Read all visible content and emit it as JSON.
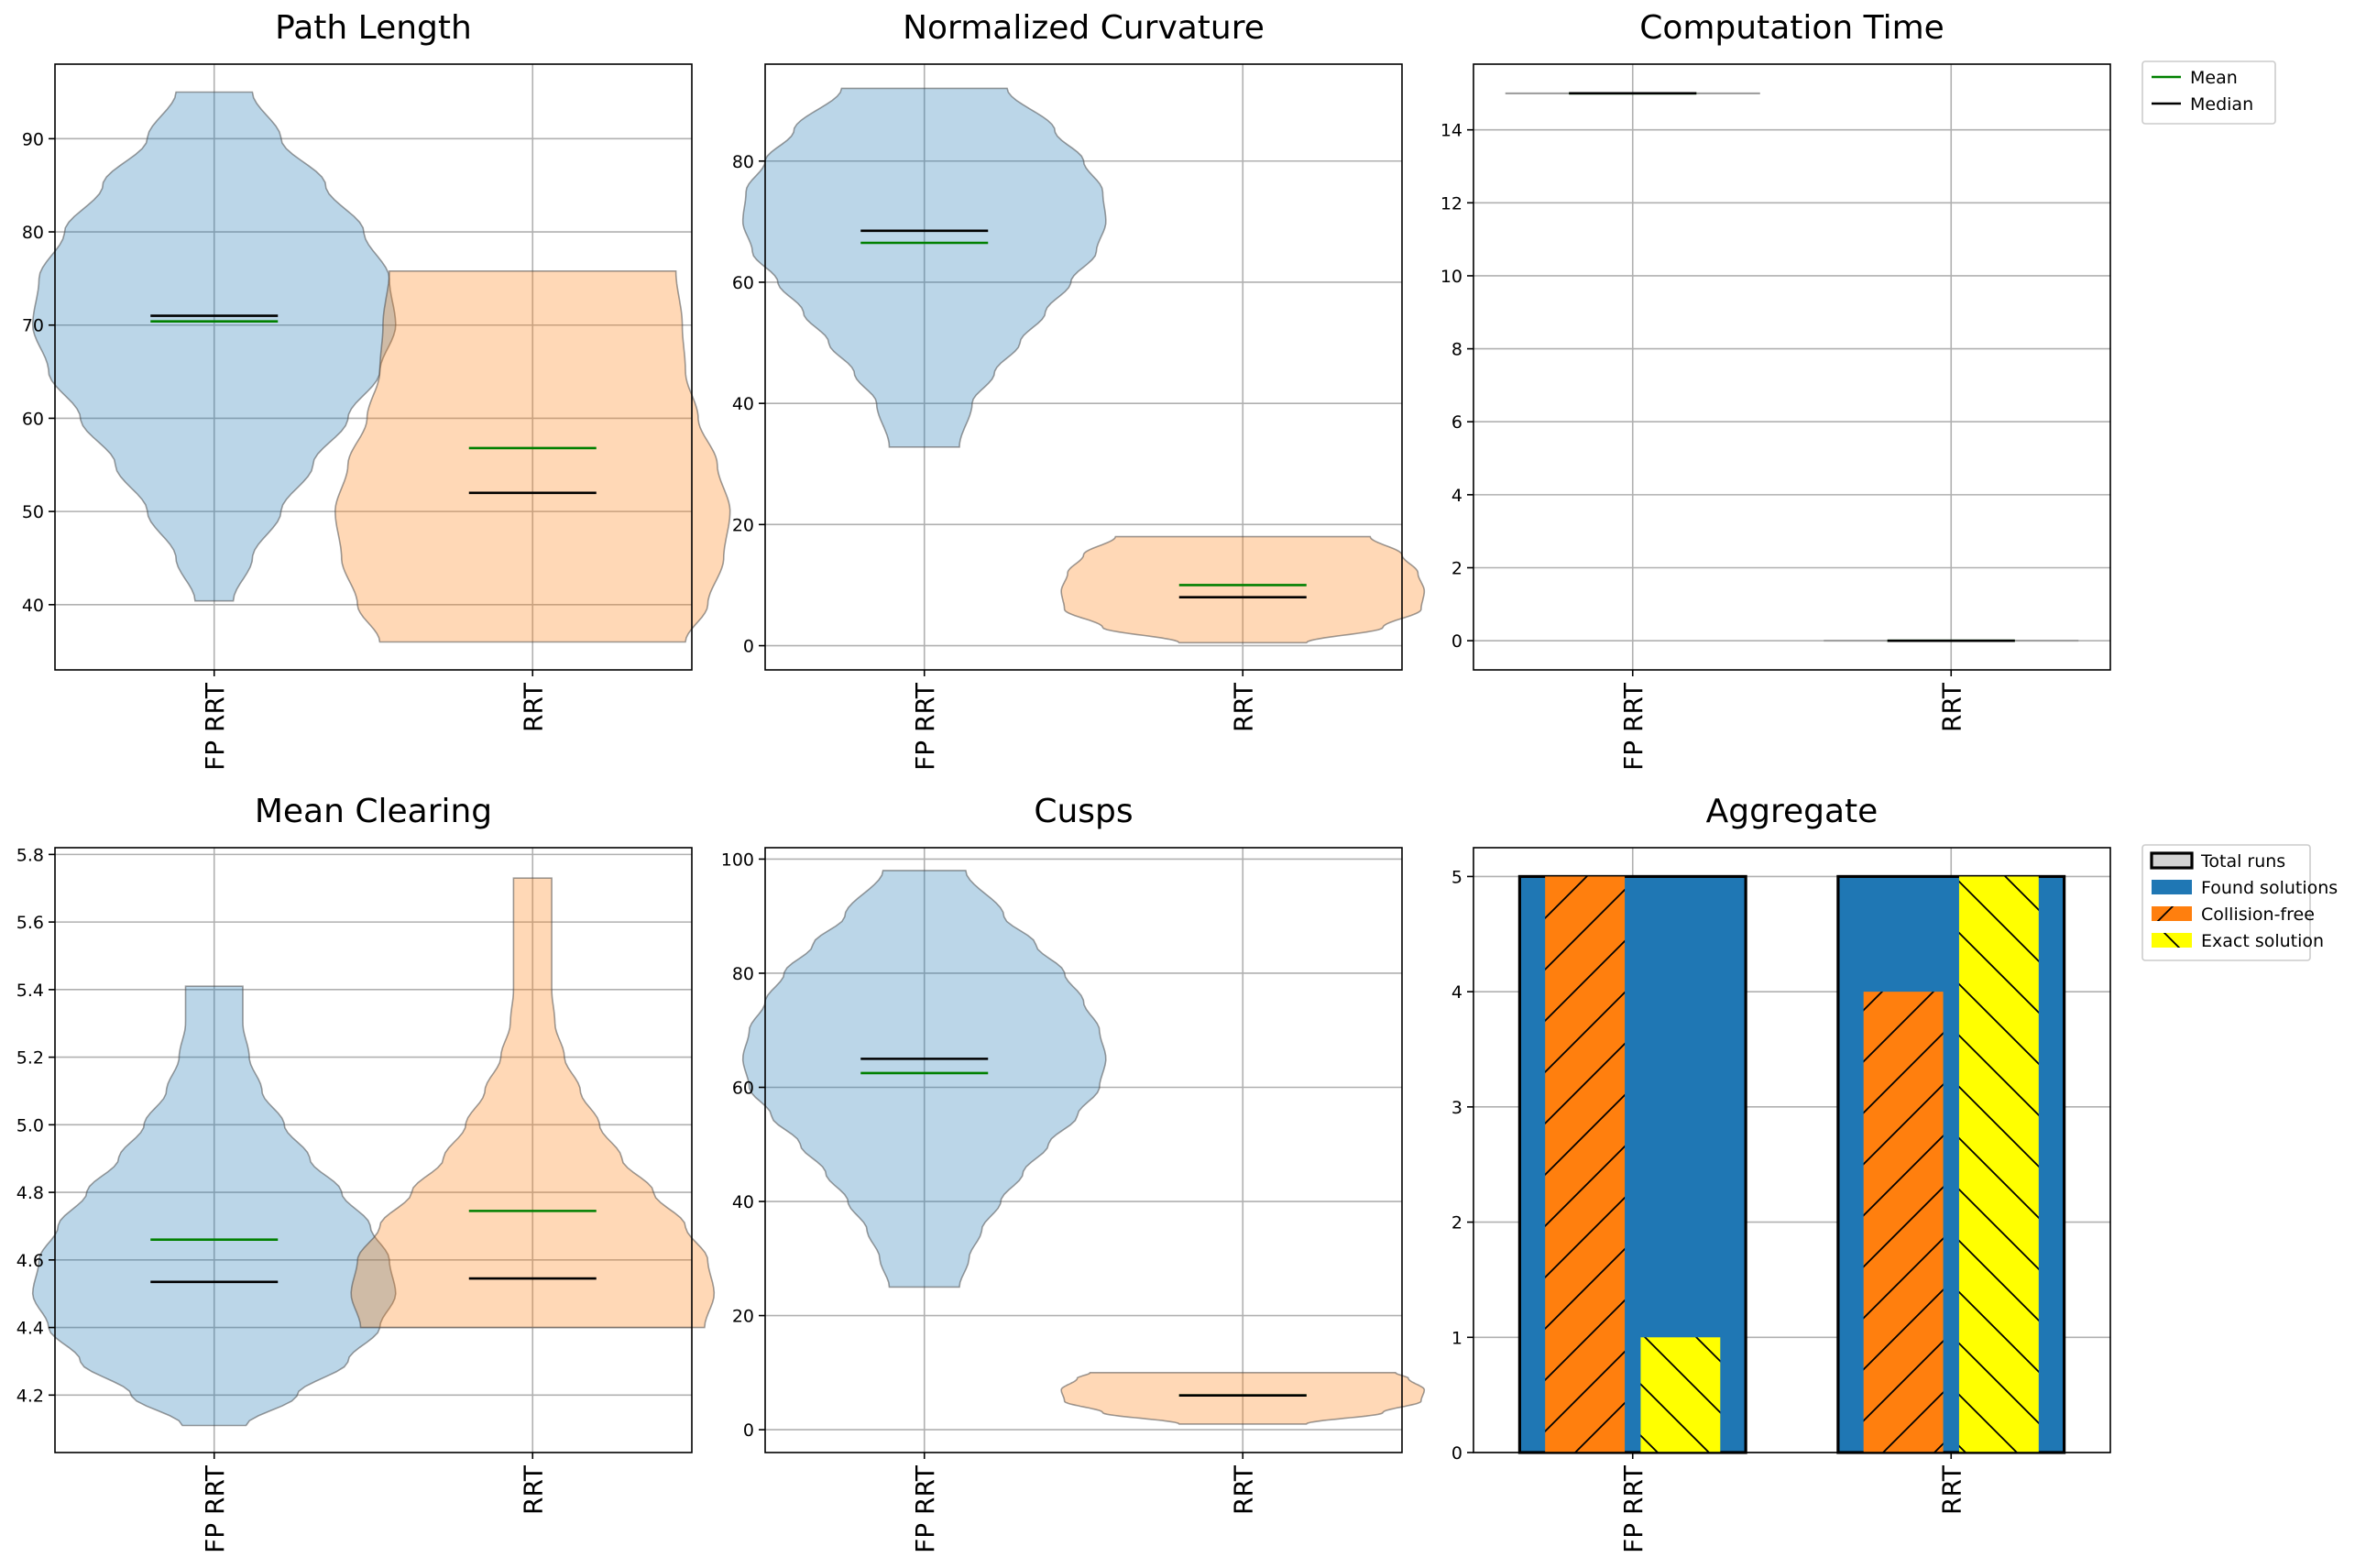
{
  "chart_data": [
    {
      "type": "violin",
      "title": "Path Length",
      "categories": [
        "FP RRT",
        "RRT"
      ],
      "ylim": [
        33,
        98
      ],
      "yticks": [
        40,
        50,
        60,
        70,
        80,
        90
      ],
      "grid": true,
      "series": [
        {
          "category": "FP RRT",
          "color": "#1f77b4",
          "min": 40.4,
          "max": 95.0,
          "mean": 70.4,
          "median": 71.0,
          "density": [
            [
              40.4,
              6
            ],
            [
              45,
              12
            ],
            [
              50,
              21
            ],
            [
              55,
              31
            ],
            [
              60,
              42
            ],
            [
              65,
              52
            ],
            [
              70,
              57
            ],
            [
              75,
              55
            ],
            [
              80,
              47
            ],
            [
              85,
              35
            ],
            [
              90,
              21
            ],
            [
              95,
              12
            ]
          ]
        },
        {
          "category": "RRT",
          "color": "#ff7f0e",
          "min": 36.0,
          "max": 75.8,
          "mean": 56.8,
          "median": 52.0,
          "density": [
            [
              36,
              48
            ],
            [
              40,
              55
            ],
            [
              45,
              60
            ],
            [
              50,
              62
            ],
            [
              55,
              58
            ],
            [
              60,
              52
            ],
            [
              65,
              48
            ],
            [
              70,
              47
            ],
            [
              75.8,
              45
            ]
          ]
        }
      ]
    },
    {
      "type": "violin",
      "title": "Normalized Curvature",
      "categories": [
        "FP RRT",
        "RRT"
      ],
      "ylim": [
        -4,
        96
      ],
      "yticks": [
        0,
        20,
        40,
        60,
        80
      ],
      "grid": true,
      "series": [
        {
          "category": "FP RRT",
          "color": "#1f77b4",
          "min": 32.8,
          "max": 92.0,
          "mean": 66.5,
          "median": 68.5,
          "density": [
            [
              32.8,
              11
            ],
            [
              40,
              15
            ],
            [
              45,
              22
            ],
            [
              50,
              30
            ],
            [
              55,
              38
            ],
            [
              60,
              46
            ],
            [
              65,
              54
            ],
            [
              70,
              57
            ],
            [
              75,
              56
            ],
            [
              80,
              50
            ],
            [
              85,
              41
            ],
            [
              92,
              26
            ]
          ]
        },
        {
          "category": "RRT",
          "color": "#ff7f0e",
          "min": 0.5,
          "max": 18.0,
          "mean": 10.0,
          "median": 8.0,
          "density": [
            [
              0.5,
              20
            ],
            [
              3,
              44
            ],
            [
              6,
              56
            ],
            [
              9,
              57
            ],
            [
              12,
              55
            ],
            [
              15,
              50
            ],
            [
              18,
              40
            ]
          ]
        }
      ]
    },
    {
      "type": "violin",
      "title": "Computation Time",
      "categories": [
        "FP RRT",
        "RRT"
      ],
      "ylim": [
        -0.8,
        15.8
      ],
      "yticks": [
        0,
        2,
        4,
        6,
        8,
        10,
        12,
        14
      ],
      "grid": true,
      "legend": {
        "position": "outside-right",
        "entries": [
          {
            "label": "Mean",
            "color": "#008000"
          },
          {
            "label": "Median",
            "color": "#000000"
          }
        ]
      },
      "series": [
        {
          "category": "FP RRT",
          "color": "#1f77b4",
          "min": 15.0,
          "max": 15.0,
          "mean": 15.0,
          "median": 15.0
        },
        {
          "category": "RRT",
          "color": "#ff7f0e",
          "min": 0.0,
          "max": 0.0,
          "mean": 0.0,
          "median": 0.0
        }
      ]
    },
    {
      "type": "violin",
      "title": "Mean Clearing",
      "categories": [
        "FP RRT",
        "RRT"
      ],
      "ylim": [
        4.03,
        5.82
      ],
      "yticks": [
        4.2,
        4.4,
        4.6,
        4.8,
        5.0,
        5.2,
        5.4,
        5.6,
        5.8
      ],
      "grid": true,
      "series": [
        {
          "category": "FP RRT",
          "color": "#1f77b4",
          "min": 4.11,
          "max": 5.41,
          "mean": 4.66,
          "median": 4.535,
          "density": [
            [
              4.11,
              10
            ],
            [
              4.2,
              26
            ],
            [
              4.3,
              42
            ],
            [
              4.4,
              52
            ],
            [
              4.5,
              57
            ],
            [
              4.6,
              55
            ],
            [
              4.7,
              49
            ],
            [
              4.8,
              40
            ],
            [
              4.9,
              30
            ],
            [
              5.0,
              22
            ],
            [
              5.1,
              15
            ],
            [
              5.2,
              11
            ],
            [
              5.3,
              9
            ],
            [
              5.41,
              9
            ]
          ]
        },
        {
          "category": "RRT",
          "color": "#ff7f0e",
          "min": 4.4,
          "max": 5.73,
          "mean": 4.745,
          "median": 4.545,
          "density": [
            [
              4.4,
              54
            ],
            [
              4.5,
              57
            ],
            [
              4.6,
              55
            ],
            [
              4.7,
              48
            ],
            [
              4.8,
              38
            ],
            [
              4.9,
              28
            ],
            [
              5.0,
              21
            ],
            [
              5.1,
              15
            ],
            [
              5.2,
              10
            ],
            [
              5.3,
              7
            ],
            [
              5.4,
              6
            ],
            [
              5.5,
              6
            ],
            [
              5.6,
              6
            ],
            [
              5.73,
              6
            ]
          ]
        }
      ]
    },
    {
      "type": "violin",
      "title": "Cusps",
      "categories": [
        "FP RRT",
        "RRT"
      ],
      "ylim": [
        -4,
        102
      ],
      "yticks": [
        0,
        20,
        40,
        60,
        80,
        100
      ],
      "grid": true,
      "series": [
        {
          "category": "FP RRT",
          "color": "#1f77b4",
          "min": 25.0,
          "max": 98.0,
          "mean": 62.5,
          "median": 65.0,
          "density": [
            [
              25,
              11
            ],
            [
              30,
              14
            ],
            [
              35,
              18
            ],
            [
              40,
              24
            ],
            [
              45,
              31
            ],
            [
              50,
              39
            ],
            [
              55,
              48
            ],
            [
              60,
              55
            ],
            [
              65,
              57
            ],
            [
              70,
              55
            ],
            [
              75,
              50
            ],
            [
              80,
              44
            ],
            [
              85,
              35
            ],
            [
              90,
              25
            ],
            [
              98,
              13
            ]
          ]
        },
        {
          "category": "RRT",
          "color": "#ff7f0e",
          "min": 1.0,
          "max": 10.0,
          "mean": 6.0,
          "median": 6.0,
          "density": [
            [
              1,
              20
            ],
            [
              3,
              44
            ],
            [
              5,
              56
            ],
            [
              7,
              57
            ],
            [
              9,
              52
            ],
            [
              10,
              48
            ]
          ]
        }
      ]
    },
    {
      "type": "bar",
      "title": "Aggregate",
      "categories": [
        "FP RRT",
        "RRT"
      ],
      "ylim": [
        0,
        5.25
      ],
      "yticks": [
        0,
        1,
        2,
        3,
        4,
        5
      ],
      "grid": true,
      "legend": {
        "position": "outside-right",
        "entries": [
          {
            "label": "Total runs",
            "color": "#d3d3d3"
          },
          {
            "label": "Found solutions",
            "color": "#1f77b4"
          },
          {
            "label": "Collision-free",
            "color": "#ff7f0e"
          },
          {
            "label": "Exact solution",
            "color": "#ffff00"
          }
        ]
      },
      "series": [
        {
          "name": "Total runs",
          "color": "#d3d3d3",
          "values": [
            5,
            5
          ]
        },
        {
          "name": "Found solutions",
          "color": "#1f77b4",
          "values": [
            5,
            5
          ]
        },
        {
          "name": "Collision-free",
          "color": "#ff7f0e",
          "values": [
            5,
            4
          ]
        },
        {
          "name": "Exact solution",
          "color": "#ffff00",
          "values": [
            1,
            5
          ]
        }
      ]
    }
  ]
}
